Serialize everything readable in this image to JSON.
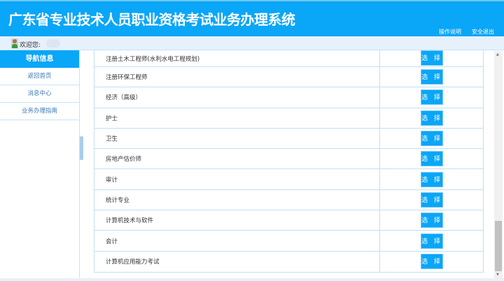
{
  "header": {
    "title": "广东省专业技术人员职业资格考试业务办理系统",
    "help_link": "操作说明",
    "logout_link": "安全退出"
  },
  "welcome": {
    "label": "欢迎您:"
  },
  "sidebar": {
    "title": "导航信息",
    "items": [
      {
        "label": "返回首页"
      },
      {
        "label": "消息中心"
      },
      {
        "label": "业务办理指南"
      }
    ]
  },
  "table": {
    "select_label": "选 择",
    "rows": [
      {
        "name": "注册土木工程师(水利水电工程规划)"
      },
      {
        "name": "注册环保工程师"
      },
      {
        "name": "经济（高级）"
      },
      {
        "name": "护士"
      },
      {
        "name": "卫生"
      },
      {
        "name": "房地产估价师"
      },
      {
        "name": "审计"
      },
      {
        "name": "统计专业"
      },
      {
        "name": "计算机技术与软件"
      },
      {
        "name": "会计"
      },
      {
        "name": "计算机应用能力考试"
      }
    ]
  },
  "colors": {
    "brand": "#0aa6f7"
  }
}
